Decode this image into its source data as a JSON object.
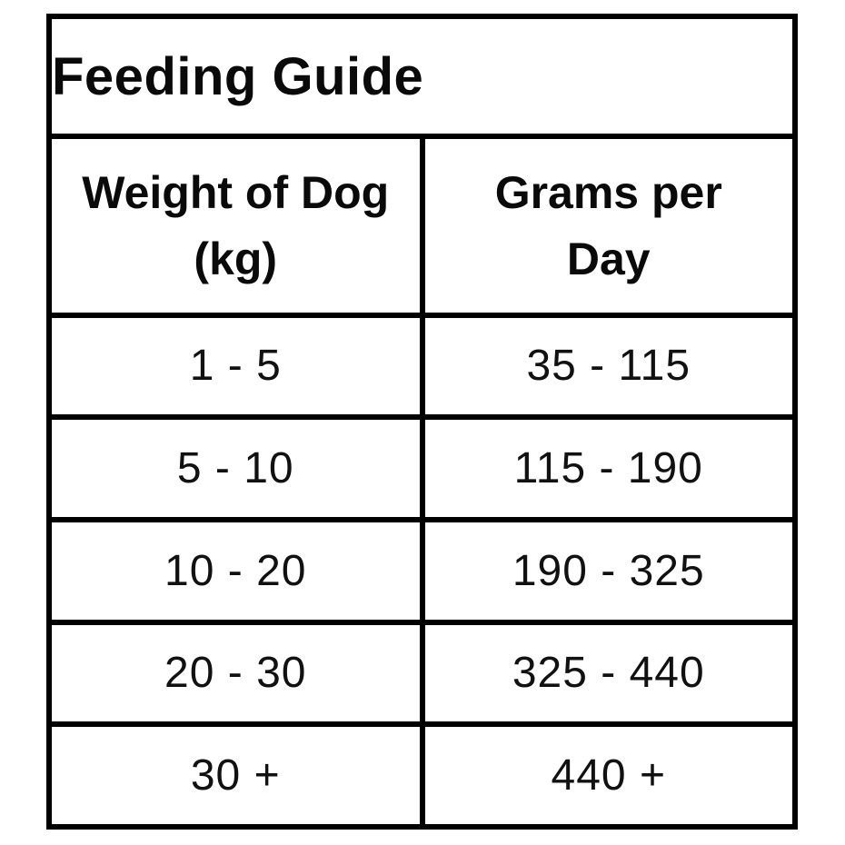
{
  "table": {
    "title": "Feeding Guide",
    "columns": [
      {
        "label": "Weight of Dog\n(kg)"
      },
      {
        "label": "Grams per\nDay"
      }
    ],
    "rows": [
      {
        "weight": "1 - 5",
        "grams": "35 - 115"
      },
      {
        "weight": "5 - 10",
        "grams": "115 - 190"
      },
      {
        "weight": "10 - 20",
        "grams": "190 - 325"
      },
      {
        "weight": "20 - 30",
        "grams": "325 - 440"
      },
      {
        "weight": "30 +",
        "grams": "440 +"
      }
    ],
    "colors": {
      "border": "#000000",
      "background": "#ffffff",
      "text": "#0a0a0a"
    }
  }
}
